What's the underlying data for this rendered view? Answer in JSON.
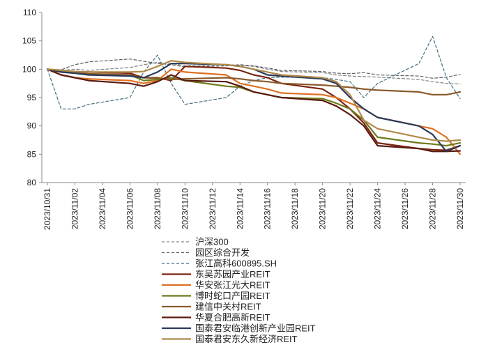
{
  "chart_data": {
    "type": "line",
    "title": "",
    "xlabel": "",
    "ylabel": "",
    "ylim": [
      80,
      110
    ],
    "yticks": [
      80,
      85,
      90,
      95,
      100,
      105,
      110
    ],
    "x": [
      "2023/10/31",
      "2023/11/01",
      "2023/11/02",
      "2023/11/03",
      "2023/11/06",
      "2023/11/07",
      "2023/11/08",
      "2023/11/09",
      "2023/11/10",
      "2023/11/13",
      "2023/11/14",
      "2023/11/15",
      "2023/11/16",
      "2023/11/17",
      "2023/11/20",
      "2023/11/21",
      "2023/11/22",
      "2023/11/23",
      "2023/11/24",
      "2023/11/27",
      "2023/11/28",
      "2023/11/29",
      "2023/11/30"
    ],
    "xtick_labels": [
      "2023/10/31",
      "2023/11/02",
      "2023/11/04",
      "2023/11/06",
      "2023/11/08",
      "2023/11/10",
      "2023/11/12",
      "2023/11/14",
      "2023/11/16",
      "2023/11/18",
      "2023/11/20",
      "2023/11/22",
      "2023/11/24",
      "2023/11/26",
      "2023/11/28",
      "2023/11/30"
    ],
    "legend_position": "bottom",
    "series": [
      {
        "name": "沪深300",
        "color": "#808080",
        "dash": "4,3",
        "values": [
          100,
          99.8,
          100.0,
          99.8,
          100.3,
          100.8,
          101.2,
          101.0,
          100.6,
          100.8,
          100.7,
          100.5,
          100.0,
          99.6,
          99.4,
          99.0,
          98.8,
          98.7,
          98.6,
          98.2,
          97.8,
          97.5,
          97.4
        ]
      },
      {
        "name": "园区综合开发",
        "color": "#606060",
        "dash": "4,3",
        "values": [
          100,
          99.9,
          100.8,
          101.3,
          101.8,
          101.4,
          101.0,
          100.8,
          100.4,
          100.6,
          100.8,
          100.6,
          100.2,
          99.8,
          99.6,
          99.3,
          99.2,
          99.4,
          99.0,
          98.8,
          98.4,
          98.6,
          99.1
        ]
      },
      {
        "name": "张江高科600895.SH",
        "color": "#3f6f7f",
        "dash": "4,3",
        "values": [
          100,
          93.0,
          93.0,
          93.8,
          95.0,
          99.5,
          102.5,
          97.5,
          93.8,
          95.0,
          97.0,
          98.0,
          98.5,
          98.6,
          98.5,
          98.2,
          97.8,
          95.0,
          97.5,
          101.0,
          105.8,
          98.5,
          94.8
        ]
      },
      {
        "name": "东吴苏园产业REIT",
        "color": "#7a2410",
        "dash": "",
        "values": [
          100,
          99.8,
          99.5,
          99.5,
          99.3,
          98.5,
          98.5,
          98.0,
          100.5,
          100.2,
          99.8,
          99.0,
          98.5,
          97.5,
          96.5,
          95.0,
          93.0,
          90.5,
          87.0,
          86.0,
          85.8,
          85.7,
          86.5
        ]
      },
      {
        "name": "华安张江光大REIT",
        "color": "#e07020",
        "dash": "",
        "values": [
          100,
          99.0,
          98.5,
          98.3,
          98.0,
          97.5,
          98.0,
          100.0,
          99.5,
          99.0,
          97.5,
          97.0,
          96.5,
          95.8,
          95.5,
          95.0,
          94.0,
          93.0,
          91.5,
          90.0,
          89.5,
          88.0,
          85.0
        ]
      },
      {
        "name": "博时蛇口产园REIT",
        "color": "#6e7a1a",
        "dash": "",
        "values": [
          100,
          99.5,
          99.3,
          99.0,
          99.0,
          98.0,
          98.2,
          98.5,
          98.0,
          97.0,
          96.8,
          96.0,
          95.5,
          95.0,
          94.8,
          94.0,
          93.0,
          91.0,
          88.0,
          87.0,
          86.8,
          86.5,
          87.0
        ]
      },
      {
        "name": "建信中关村REIT",
        "color": "#8a5a2a",
        "dash": "",
        "values": [
          100,
          99.6,
          99.4,
          99.2,
          99.0,
          98.5,
          98.4,
          98.2,
          98.3,
          98.5,
          98.3,
          98.0,
          97.8,
          97.5,
          97.2,
          97.0,
          96.8,
          96.5,
          96.3,
          96.0,
          95.5,
          95.5,
          96.0
        ]
      },
      {
        "name": "华夏合肥高新REIT",
        "color": "#5a1a10",
        "dash": "",
        "values": [
          100,
          99.0,
          98.5,
          98.0,
          97.5,
          97.0,
          97.8,
          99.0,
          98.0,
          97.8,
          97.0,
          96.0,
          95.5,
          95.0,
          94.5,
          93.5,
          92.0,
          90.0,
          86.5,
          86.0,
          85.5,
          85.5,
          85.6
        ]
      },
      {
        "name": "国泰君安临港创新产业园REIT",
        "color": "#2a3a5a",
        "dash": "",
        "values": [
          100,
          99.5,
          99.3,
          99.0,
          98.8,
          98.5,
          99.5,
          101.0,
          101.0,
          100.8,
          100.5,
          100.0,
          99.0,
          98.8,
          98.3,
          97.5,
          95.0,
          93.0,
          91.5,
          90.0,
          88.5,
          85.5,
          86.5
        ]
      },
      {
        "name": "国泰君安东久新经济REIT",
        "color": "#b08a4a",
        "dash": "",
        "values": [
          100,
          99.8,
          99.6,
          99.5,
          99.5,
          99.6,
          100.5,
          101.5,
          101.2,
          100.8,
          100.5,
          100.0,
          99.5,
          99.0,
          98.5,
          97.8,
          95.5,
          91.0,
          89.5,
          88.0,
          87.5,
          87.3,
          87.5
        ]
      }
    ]
  }
}
